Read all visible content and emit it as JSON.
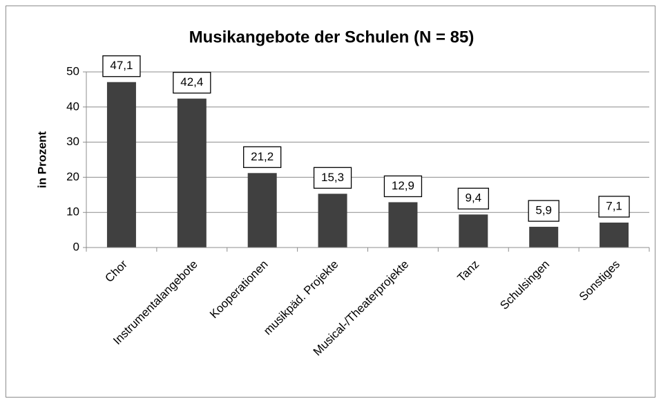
{
  "chart_data": {
    "type": "bar",
    "title": "Musikangebote der Schulen (N = 85)",
    "y_label": "in Prozent",
    "categories": [
      "Chor",
      "Instrumentalangebote",
      "Kooperationen",
      "musikpäd. Projekte",
      "Musical-/Theaterprojekte",
      "Tanz",
      "Schulsingen",
      "Sonstiges"
    ],
    "values": [
      47.1,
      42.4,
      21.2,
      15.3,
      12.9,
      9.4,
      5.9,
      7.1
    ],
    "value_labels": [
      "47,1",
      "42,4",
      "21,2",
      "15,3",
      "12,9",
      "9,4",
      "5,9",
      "7,1"
    ],
    "color": "#404040",
    "ylim": [
      0,
      50
    ],
    "yticks": [
      0,
      10,
      20,
      30,
      40,
      50
    ],
    "grid": true
  }
}
